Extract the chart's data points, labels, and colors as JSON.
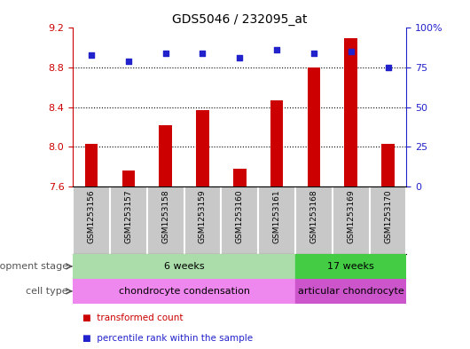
{
  "title": "GDS5046 / 232095_at",
  "samples": [
    "GSM1253156",
    "GSM1253157",
    "GSM1253158",
    "GSM1253159",
    "GSM1253160",
    "GSM1253161",
    "GSM1253168",
    "GSM1253169",
    "GSM1253170"
  ],
  "bar_values": [
    8.03,
    7.76,
    8.22,
    8.37,
    7.78,
    8.47,
    8.8,
    9.1,
    8.03
  ],
  "dot_values": [
    83,
    79,
    84,
    84,
    81,
    86,
    84,
    85,
    75
  ],
  "ylim_left": [
    7.6,
    9.2
  ],
  "ylim_right": [
    0,
    100
  ],
  "yticks_left": [
    7.6,
    8.0,
    8.4,
    8.8,
    9.2
  ],
  "yticks_right": [
    0,
    25,
    50,
    75,
    100
  ],
  "bar_color": "#cc0000",
  "dot_color": "#2222cc",
  "dot_size": 25,
  "dev_stage_groups": [
    {
      "label": "6 weeks",
      "start": 0,
      "end": 6,
      "color": "#aaddaa"
    },
    {
      "label": "17 weeks",
      "start": 6,
      "end": 9,
      "color": "#44cc44"
    }
  ],
  "cell_type_groups": [
    {
      "label": "chondrocyte condensation",
      "start": 0,
      "end": 6,
      "color": "#ee88ee"
    },
    {
      "label": "articular chondrocyte",
      "start": 6,
      "end": 9,
      "color": "#cc55cc"
    }
  ],
  "annotation_dev_stage": "development stage",
  "annotation_cell_type": "cell type",
  "legend_bar_label": "transformed count",
  "legend_dot_label": "percentile rank within the sample",
  "bar_bottom": 7.6,
  "sample_bg_color": "#c8c8c8",
  "sample_divider_color": "#ffffff",
  "plot_bg_color": "#ffffff",
  "tick_color_left": "#cc0000",
  "tick_color_right": "#2222cc",
  "grid_yticks": [
    8.0,
    8.4,
    8.8
  ],
  "bar_width": 0.35
}
